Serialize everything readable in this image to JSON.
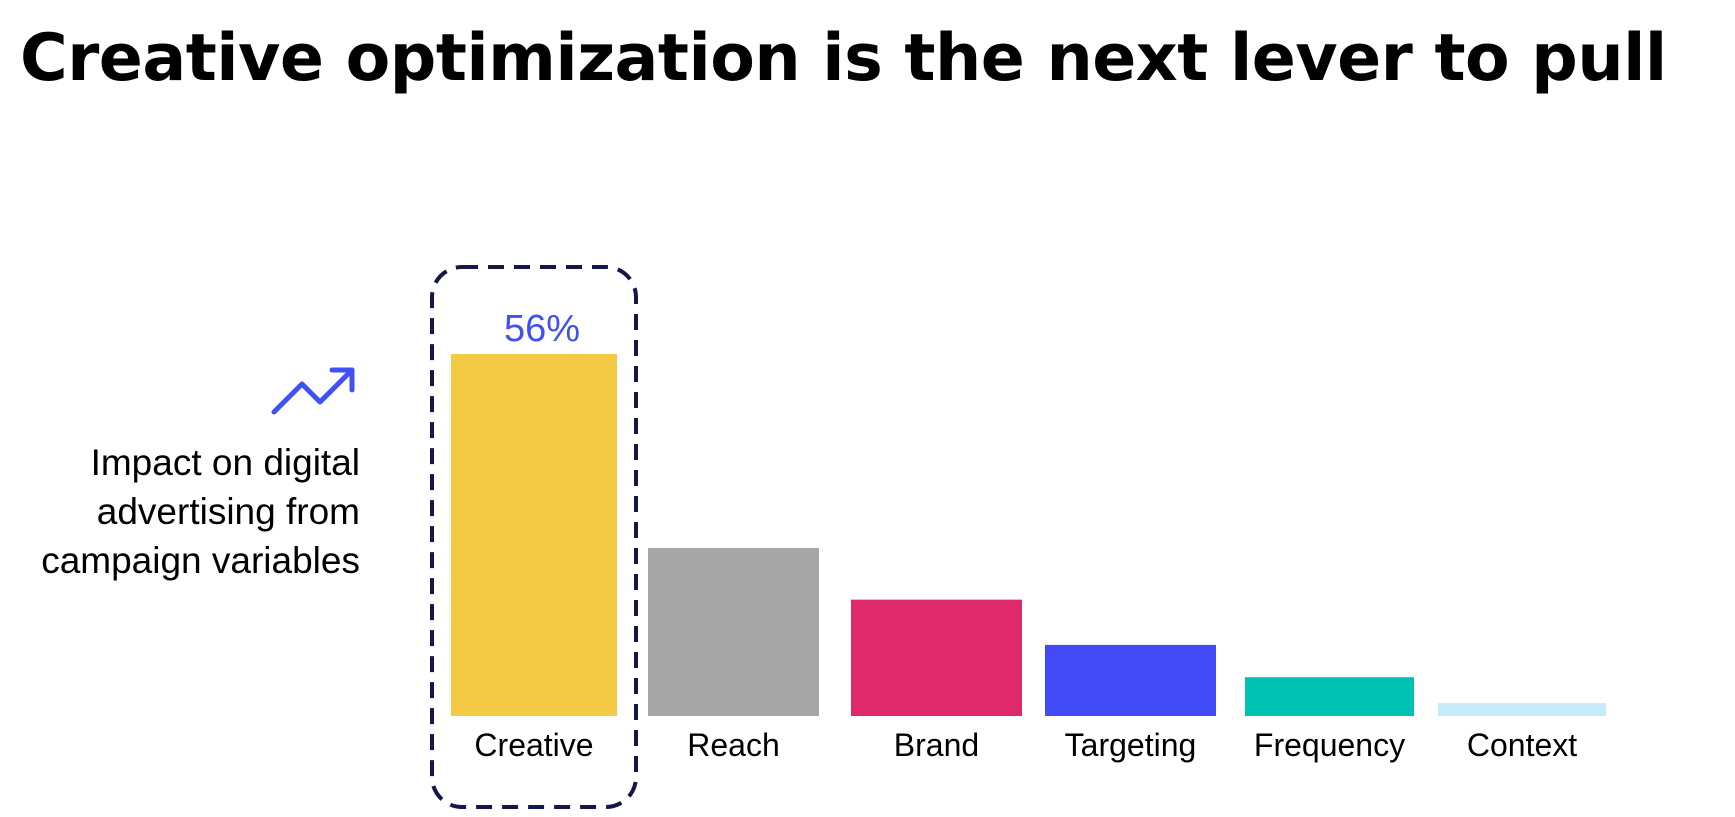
{
  "title": "Creative optimization is the next lever to pull",
  "side_label": {
    "lines": [
      "Impact on digital",
      "advertising from",
      "campaign variables"
    ]
  },
  "icons": {
    "trend": "trending-up-icon"
  },
  "colors": {
    "accent": "#4050F5",
    "highlight_border": "#15174A"
  },
  "chart_data": {
    "type": "bar",
    "categories": [
      "Creative",
      "Reach",
      "Brand",
      "Targeting",
      "Frequency",
      "Context"
    ],
    "values": [
      56,
      26,
      18,
      11,
      6,
      2
    ],
    "colors": [
      "#F3CA43",
      "#A6A6A6",
      "#E0296A",
      "#434BF8",
      "#00C2B2",
      "#C7EBFB"
    ],
    "data_labels": [
      "56%",
      "",
      "",
      "",
      "",
      ""
    ],
    "highlight_category": "Creative",
    "ylim": [
      0,
      56
    ],
    "title": "",
    "xlabel": "",
    "ylabel": "",
    "grid": false
  }
}
